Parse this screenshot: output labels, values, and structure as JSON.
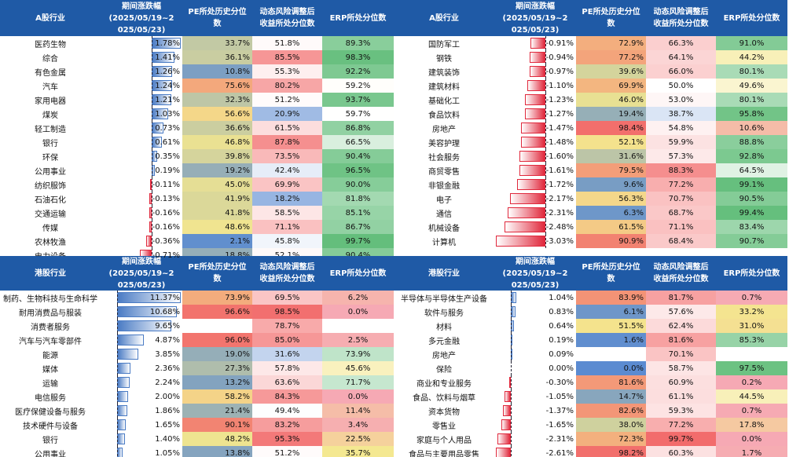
{
  "colors": {
    "header_bg": "#1f5aa6",
    "bar_pos": "#4a7bc4",
    "bar_neg": "#e0283c",
    "scale_low": "#5b8bd1",
    "scale_mid": "#f4e78e",
    "scale_high": "#f26b6b",
    "erp_low": "#f6a9b4",
    "erp_high": "#63be7b"
  },
  "chart_data": {
    "type": "table",
    "a_share": {
      "headers": [
        "A股行业",
        "期间涨跌幅\n(2025/05/19~2\n025/05/23)",
        "PE所处历史分位\n数",
        "动态风险调整后\n收益所处分位数",
        "ERP所处分位数"
      ],
      "change_range": [
        -3.03,
        1.78
      ],
      "left": [
        {
          "name": "医药生物",
          "chg": 1.78,
          "chg_text": "1.78%",
          "pe": 33.7,
          "pe_text": "33.7%",
          "risk": 51.8,
          "risk_text": "51.8%",
          "erp": 89.3,
          "erp_text": "89.3%"
        },
        {
          "name": "综合",
          "chg": 1.41,
          "chg_text": "1.41%",
          "pe": 36.1,
          "pe_text": "36.1%",
          "risk": 85.5,
          "risk_text": "85.5%",
          "erp": 98.3,
          "erp_text": "98.3%"
        },
        {
          "name": "有色金属",
          "chg": 1.26,
          "chg_text": "1.26%",
          "pe": 10.8,
          "pe_text": "10.8%",
          "risk": 55.3,
          "risk_text": "55.3%",
          "erp": 92.2,
          "erp_text": "92.2%"
        },
        {
          "name": "汽车",
          "chg": 1.24,
          "chg_text": "1.24%",
          "pe": 75.6,
          "pe_text": "75.6%",
          "risk": 80.2,
          "risk_text": "80.2%",
          "erp": 59.2,
          "erp_text": "59.2%"
        },
        {
          "name": "家用电器",
          "chg": 1.21,
          "chg_text": "1.21%",
          "pe": 32.3,
          "pe_text": "32.3%",
          "risk": 51.2,
          "risk_text": "51.2%",
          "erp": 93.7,
          "erp_text": "93.7%"
        },
        {
          "name": "煤炭",
          "chg": 1.03,
          "chg_text": "1.03%",
          "pe": 56.6,
          "pe_text": "56.6%",
          "risk": 20.9,
          "risk_text": "20.9%",
          "erp": 59.7,
          "erp_text": "59.7%"
        },
        {
          "name": "轻工制造",
          "chg": 0.73,
          "chg_text": "0.73%",
          "pe": 36.6,
          "pe_text": "36.6%",
          "risk": 61.5,
          "risk_text": "61.5%",
          "erp": 86.8,
          "erp_text": "86.8%"
        },
        {
          "name": "银行",
          "chg": 0.61,
          "chg_text": "0.61%",
          "pe": 46.8,
          "pe_text": "46.8%",
          "risk": 87.8,
          "risk_text": "87.8%",
          "erp": 66.5,
          "erp_text": "66.5%"
        },
        {
          "name": "环保",
          "chg": 0.35,
          "chg_text": "0.35%",
          "pe": 39.8,
          "pe_text": "39.8%",
          "risk": 73.5,
          "risk_text": "73.5%",
          "erp": 90.4,
          "erp_text": "90.4%"
        },
        {
          "name": "公用事业",
          "chg": 0.19,
          "chg_text": "0.19%",
          "pe": 19.2,
          "pe_text": "19.2%",
          "risk": 42.4,
          "risk_text": "42.4%",
          "erp": 96.5,
          "erp_text": "96.5%"
        },
        {
          "name": "纺织服饰",
          "chg": -0.11,
          "chg_text": "-0.11%",
          "pe": 45.0,
          "pe_text": "45.0%",
          "risk": 69.9,
          "risk_text": "69.9%",
          "erp": 90.0,
          "erp_text": "90.0%"
        },
        {
          "name": "石油石化",
          "chg": -0.13,
          "chg_text": "-0.13%",
          "pe": 41.9,
          "pe_text": "41.9%",
          "risk": 18.2,
          "risk_text": "18.2%",
          "erp": 81.8,
          "erp_text": "81.8%"
        },
        {
          "name": "交通运输",
          "chg": -0.16,
          "chg_text": "-0.16%",
          "pe": 41.8,
          "pe_text": "41.8%",
          "risk": 58.5,
          "risk_text": "58.5%",
          "erp": 85.1,
          "erp_text": "85.1%"
        },
        {
          "name": "传媒",
          "chg": -0.16,
          "chg_text": "-0.16%",
          "pe": 48.6,
          "pe_text": "48.6%",
          "risk": 71.1,
          "risk_text": "71.1%",
          "erp": 86.7,
          "erp_text": "86.7%"
        },
        {
          "name": "农林牧渔",
          "chg": -0.36,
          "chg_text": "-0.36%",
          "pe": 2.1,
          "pe_text": "2.1%",
          "risk": 45.8,
          "risk_text": "45.8%",
          "erp": 99.7,
          "erp_text": "99.7%"
        },
        {
          "name": "电力设备",
          "chg": -0.71,
          "chg_text": "-0.71%",
          "pe": 18.8,
          "pe_text": "18.8%",
          "risk": 52.1,
          "risk_text": "52.1%",
          "erp": 90.4,
          "erp_text": "90.4%"
        }
      ],
      "right": [
        {
          "name": "国防军工",
          "chg": -0.91,
          "chg_text": "-0.91%",
          "pe": 72.9,
          "pe_text": "72.9%",
          "risk": 66.3,
          "risk_text": "66.3%",
          "erp": 91.0,
          "erp_text": "91.0%"
        },
        {
          "name": "钢铁",
          "chg": -0.94,
          "chg_text": "-0.94%",
          "pe": 77.2,
          "pe_text": "77.2%",
          "risk": 64.1,
          "risk_text": "64.1%",
          "erp": 44.2,
          "erp_text": "44.2%"
        },
        {
          "name": "建筑装饰",
          "chg": -0.97,
          "chg_text": "-0.97%",
          "pe": 39.6,
          "pe_text": "39.6%",
          "risk": 66.0,
          "risk_text": "66.0%",
          "erp": 80.1,
          "erp_text": "80.1%"
        },
        {
          "name": "建筑材料",
          "chg": -1.1,
          "chg_text": "-1.10%",
          "pe": 69.9,
          "pe_text": "69.9%",
          "risk": 50.0,
          "risk_text": "50.0%",
          "erp": 49.6,
          "erp_text": "49.6%"
        },
        {
          "name": "基础化工",
          "chg": -1.23,
          "chg_text": "-1.23%",
          "pe": 46.0,
          "pe_text": "46.0%",
          "risk": 53.0,
          "risk_text": "53.0%",
          "erp": 80.1,
          "erp_text": "80.1%"
        },
        {
          "name": "食品饮料",
          "chg": -1.27,
          "chg_text": "-1.27%",
          "pe": 19.4,
          "pe_text": "19.4%",
          "risk": 38.7,
          "risk_text": "38.7%",
          "erp": 95.8,
          "erp_text": "95.8%"
        },
        {
          "name": "房地产",
          "chg": -1.47,
          "chg_text": "-1.47%",
          "pe": 98.4,
          "pe_text": "98.4%",
          "risk": 54.8,
          "risk_text": "54.8%",
          "erp": 10.6,
          "erp_text": "10.6%"
        },
        {
          "name": "美容护理",
          "chg": -1.48,
          "chg_text": "-1.48%",
          "pe": 52.1,
          "pe_text": "52.1%",
          "risk": 59.9,
          "risk_text": "59.9%",
          "erp": 88.8,
          "erp_text": "88.8%"
        },
        {
          "name": "社会服务",
          "chg": -1.6,
          "chg_text": "-1.60%",
          "pe": 31.6,
          "pe_text": "31.6%",
          "risk": 57.3,
          "risk_text": "57.3%",
          "erp": 92.8,
          "erp_text": "92.8%"
        },
        {
          "name": "商贸零售",
          "chg": -1.61,
          "chg_text": "-1.61%",
          "pe": 79.5,
          "pe_text": "79.5%",
          "risk": 88.3,
          "risk_text": "88.3%",
          "erp": 64.5,
          "erp_text": "64.5%"
        },
        {
          "name": "非银金融",
          "chg": -1.72,
          "chg_text": "-1.72%",
          "pe": 9.6,
          "pe_text": "9.6%",
          "risk": 77.2,
          "risk_text": "77.2%",
          "erp": 99.1,
          "erp_text": "99.1%"
        },
        {
          "name": "电子",
          "chg": -2.17,
          "chg_text": "-2.17%",
          "pe": 56.3,
          "pe_text": "56.3%",
          "risk": 70.7,
          "risk_text": "70.7%",
          "erp": 90.5,
          "erp_text": "90.5%"
        },
        {
          "name": "通信",
          "chg": -2.31,
          "chg_text": "-2.31%",
          "pe": 6.3,
          "pe_text": "6.3%",
          "risk": 68.7,
          "risk_text": "68.7%",
          "erp": 99.4,
          "erp_text": "99.4%"
        },
        {
          "name": "机械设备",
          "chg": -2.48,
          "chg_text": "-2.48%",
          "pe": 61.5,
          "pe_text": "61.5%",
          "risk": 71.1,
          "risk_text": "71.1%",
          "erp": 83.4,
          "erp_text": "83.4%"
        },
        {
          "name": "计算机",
          "chg": -3.03,
          "chg_text": "-3.03%",
          "pe": 90.9,
          "pe_text": "90.9%",
          "risk": 68.4,
          "risk_text": "68.4%",
          "erp": 90.7,
          "erp_text": "90.7%"
        }
      ]
    },
    "hk": {
      "headers": [
        "港股行业",
        "期间涨跌幅\n(2025/05/19~2\n025/05/23)",
        "PE所处历史分位\n数",
        "动态风险调整后\n收益所处分位数",
        "ERP所处分位数"
      ],
      "change_range": [
        -2.61,
        11.37
      ],
      "left": [
        {
          "name": "制药、生物科技与生命科学",
          "chg": 11.37,
          "chg_text": "11.37%",
          "pe": 73.9,
          "pe_text": "73.9%",
          "risk": 69.5,
          "risk_text": "69.5%",
          "erp": 6.2,
          "erp_text": "6.2%"
        },
        {
          "name": "耐用消费品与服装",
          "chg": 10.68,
          "chg_text": "10.68%",
          "pe": 96.6,
          "pe_text": "96.6%",
          "risk": 98.5,
          "risk_text": "98.5%",
          "erp": 0.0,
          "erp_text": "0.0%"
        },
        {
          "name": "消费者服务",
          "chg": 9.65,
          "chg_text": "9.65%",
          "pe": null,
          "pe_text": "",
          "risk": 78.7,
          "risk_text": "78.7%",
          "erp": null,
          "erp_text": ""
        },
        {
          "name": "汽车与汽车零部件",
          "chg": 4.87,
          "chg_text": "4.87%",
          "pe": 96.0,
          "pe_text": "96.0%",
          "risk": 85.0,
          "risk_text": "85.0%",
          "erp": 2.5,
          "erp_text": "2.5%"
        },
        {
          "name": "能源",
          "chg": 3.85,
          "chg_text": "3.85%",
          "pe": 19.0,
          "pe_text": "19.0%",
          "risk": 31.6,
          "risk_text": "31.6%",
          "erp": 73.9,
          "erp_text": "73.9%"
        },
        {
          "name": "媒体",
          "chg": 2.36,
          "chg_text": "2.36%",
          "pe": 27.3,
          "pe_text": "27.3%",
          "risk": 57.8,
          "risk_text": "57.8%",
          "erp": 45.6,
          "erp_text": "45.6%"
        },
        {
          "name": "运输",
          "chg": 2.24,
          "chg_text": "2.24%",
          "pe": 13.2,
          "pe_text": "13.2%",
          "risk": 63.6,
          "risk_text": "63.6%",
          "erp": 71.7,
          "erp_text": "71.7%"
        },
        {
          "name": "电信服务",
          "chg": 2.0,
          "chg_text": "2.00%",
          "pe": 58.2,
          "pe_text": "58.2%",
          "risk": 84.3,
          "risk_text": "84.3%",
          "erp": 0.0,
          "erp_text": "0.0%"
        },
        {
          "name": "医疗保健设备与服务",
          "chg": 1.86,
          "chg_text": "1.86%",
          "pe": 21.4,
          "pe_text": "21.4%",
          "risk": 49.4,
          "risk_text": "49.4%",
          "erp": 11.4,
          "erp_text": "11.4%"
        },
        {
          "name": "技术硬件与设备",
          "chg": 1.65,
          "chg_text": "1.65%",
          "pe": 90.1,
          "pe_text": "90.1%",
          "risk": 83.2,
          "risk_text": "83.2%",
          "erp": 3.4,
          "erp_text": "3.4%"
        },
        {
          "name": "银行",
          "chg": 1.4,
          "chg_text": "1.40%",
          "pe": 48.2,
          "pe_text": "48.2%",
          "risk": 95.3,
          "risk_text": "95.3%",
          "erp": 22.5,
          "erp_text": "22.5%"
        },
        {
          "name": "公用事业",
          "chg": 1.05,
          "chg_text": "1.05%",
          "pe": 13.8,
          "pe_text": "13.8%",
          "risk": 51.2,
          "risk_text": "51.2%",
          "erp": 35.7,
          "erp_text": "35.7%"
        }
      ],
      "right": [
        {
          "name": "半导体与半导体生产设备",
          "chg": 1.04,
          "chg_text": "1.04%",
          "pe": 83.9,
          "pe_text": "83.9%",
          "risk": 81.7,
          "risk_text": "81.7%",
          "erp": 0.7,
          "erp_text": "0.7%"
        },
        {
          "name": "软件与服务",
          "chg": 0.83,
          "chg_text": "0.83%",
          "pe": 6.1,
          "pe_text": "6.1%",
          "risk": 57.6,
          "risk_text": "57.6%",
          "erp": 33.2,
          "erp_text": "33.2%"
        },
        {
          "name": "材料",
          "chg": 0.64,
          "chg_text": "0.64%",
          "pe": 51.5,
          "pe_text": "51.5%",
          "risk": 62.4,
          "risk_text": "62.4%",
          "erp": 31.0,
          "erp_text": "31.0%"
        },
        {
          "name": "多元金融",
          "chg": 0.19,
          "chg_text": "0.19%",
          "pe": 1.6,
          "pe_text": "1.6%",
          "risk": 81.6,
          "risk_text": "81.6%",
          "erp": 85.3,
          "erp_text": "85.3%"
        },
        {
          "name": "房地产",
          "chg": 0.09,
          "chg_text": "0.09%",
          "pe": null,
          "pe_text": "",
          "risk": 70.1,
          "risk_text": "70.1%",
          "erp": null,
          "erp_text": ""
        },
        {
          "name": "保险",
          "chg": 0.0,
          "chg_text": "0.00%",
          "pe": 0.0,
          "pe_text": "0.0%",
          "risk": 58.7,
          "risk_text": "58.7%",
          "erp": 97.5,
          "erp_text": "97.5%"
        },
        {
          "name": "商业和专业服务",
          "chg": -0.3,
          "chg_text": "-0.30%",
          "pe": 81.6,
          "pe_text": "81.6%",
          "risk": 60.9,
          "risk_text": "60.9%",
          "erp": 0.2,
          "erp_text": "0.2%"
        },
        {
          "name": "食品、饮料与烟草",
          "chg": -1.05,
          "chg_text": "-1.05%",
          "pe": 14.7,
          "pe_text": "14.7%",
          "risk": 61.1,
          "risk_text": "61.1%",
          "erp": 44.5,
          "erp_text": "44.5%"
        },
        {
          "name": "资本货物",
          "chg": -1.37,
          "chg_text": "-1.37%",
          "pe": 82.6,
          "pe_text": "82.6%",
          "risk": 59.3,
          "risk_text": "59.3%",
          "erp": 0.7,
          "erp_text": "0.7%"
        },
        {
          "name": "零售业",
          "chg": -1.65,
          "chg_text": "-1.65%",
          "pe": 38.0,
          "pe_text": "38.0%",
          "risk": 77.2,
          "risk_text": "77.2%",
          "erp": 17.8,
          "erp_text": "17.8%"
        },
        {
          "name": "家庭与个人用品",
          "chg": -2.31,
          "chg_text": "-2.31%",
          "pe": 72.3,
          "pe_text": "72.3%",
          "risk": 99.7,
          "risk_text": "99.7%",
          "erp": 0.0,
          "erp_text": "0.0%"
        },
        {
          "name": "食品与主要用品零售",
          "chg": -2.61,
          "chg_text": "-2.61%",
          "pe": 98.2,
          "pe_text": "98.2%",
          "risk": 60.3,
          "risk_text": "60.3%",
          "erp": 1.7,
          "erp_text": "1.7%"
        }
      ]
    }
  }
}
